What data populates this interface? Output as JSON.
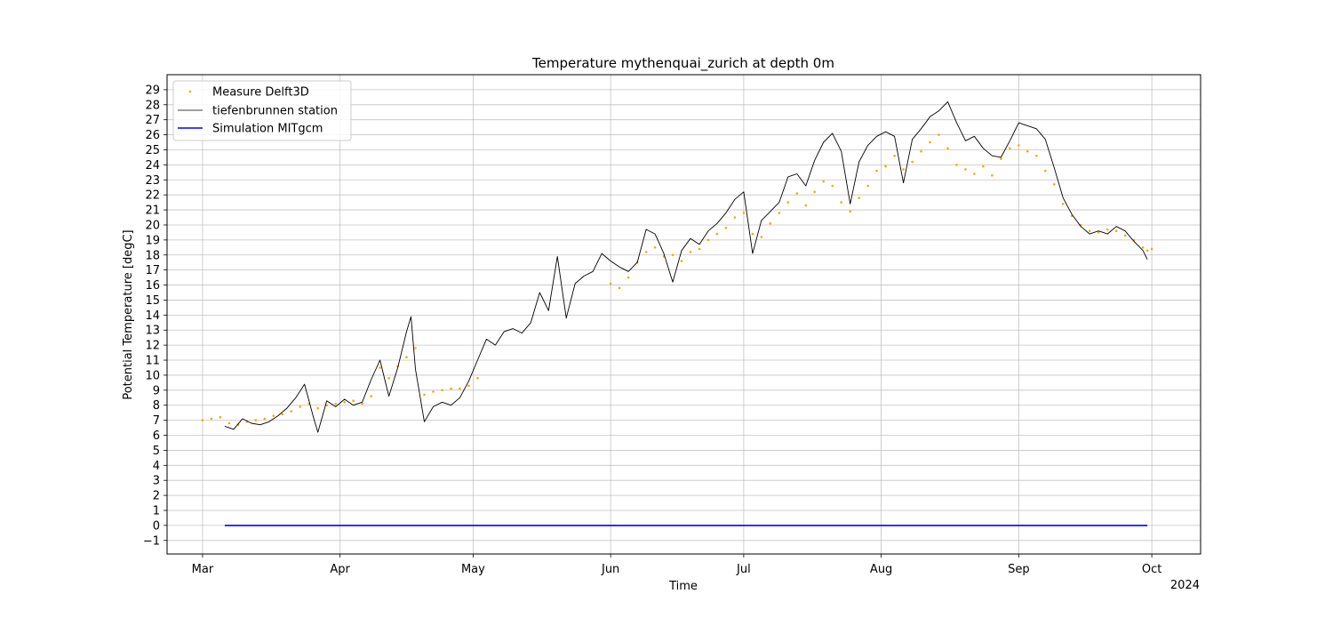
{
  "chart_data": {
    "type": "line",
    "title": "Temperature mythenquai_zurich at depth 0m",
    "xlabel": "Time",
    "ylabel": "Potential Temperature [degC]",
    "year_label": "2024",
    "x_axis": {
      "range": [
        "2024-02-22",
        "2024-10-12"
      ],
      "ticks": [
        {
          "date": "2024-03-01",
          "label": "Mar"
        },
        {
          "date": "2024-04-01",
          "label": "Apr"
        },
        {
          "date": "2024-05-01",
          "label": "May"
        },
        {
          "date": "2024-06-01",
          "label": "Jun"
        },
        {
          "date": "2024-07-01",
          "label": "Jul"
        },
        {
          "date": "2024-08-01",
          "label": "Aug"
        },
        {
          "date": "2024-09-01",
          "label": "Sep"
        },
        {
          "date": "2024-10-01",
          "label": "Oct"
        }
      ]
    },
    "y_axis": {
      "ylim": [
        -1.9,
        30.0
      ],
      "ticks": [
        -1,
        0,
        1,
        2,
        3,
        4,
        5,
        6,
        7,
        8,
        9,
        10,
        11,
        12,
        13,
        14,
        15,
        16,
        17,
        18,
        19,
        20,
        21,
        22,
        23,
        24,
        25,
        26,
        27,
        28,
        29
      ]
    },
    "grid": true,
    "legend": {
      "placement": "upper-left",
      "entries": [
        {
          "label": "Measure Delft3D",
          "style": "dots",
          "color": "#ffa500"
        },
        {
          "label": "tiefenbrunnen station",
          "style": "thin-line",
          "color": "#000000"
        },
        {
          "label": "Simulation MITgcm",
          "style": "line",
          "color": "#0000ff"
        }
      ]
    },
    "series": [
      {
        "name": "Measure Delft3D",
        "style": "dots",
        "color": "#ffa500",
        "points": [
          [
            "2024-03-01",
            7.0
          ],
          [
            "2024-03-03",
            7.1
          ],
          [
            "2024-03-05",
            7.2
          ],
          [
            "2024-03-07",
            6.8
          ],
          [
            "2024-03-09",
            6.7
          ],
          [
            "2024-03-11",
            6.9
          ],
          [
            "2024-03-13",
            7.0
          ],
          [
            "2024-03-15",
            7.1
          ],
          [
            "2024-03-17",
            7.3
          ],
          [
            "2024-03-19",
            7.4
          ],
          [
            "2024-03-21",
            7.6
          ],
          [
            "2024-03-23",
            7.9
          ],
          [
            "2024-03-25",
            8.1
          ],
          [
            "2024-03-27",
            7.8
          ],
          [
            "2024-03-29",
            8.0
          ],
          [
            "2024-03-31",
            8.1
          ],
          [
            "2024-04-02",
            8.2
          ],
          [
            "2024-04-04",
            8.3
          ],
          [
            "2024-04-06",
            8.1
          ],
          [
            "2024-04-08",
            8.6
          ],
          [
            "2024-04-10",
            10.5
          ],
          [
            "2024-04-12",
            9.8
          ],
          [
            "2024-04-14",
            10.6
          ],
          [
            "2024-04-16",
            11.2
          ],
          [
            "2024-04-18",
            11.8
          ],
          [
            "2024-04-20",
            8.7
          ],
          [
            "2024-04-22",
            8.9
          ],
          [
            "2024-04-24",
            9.0
          ],
          [
            "2024-04-26",
            9.1
          ],
          [
            "2024-04-28",
            9.1
          ],
          [
            "2024-04-30",
            9.3
          ],
          [
            "2024-05-02",
            9.8
          ],
          [
            "2024-06-01",
            16.1
          ],
          [
            "2024-06-03",
            15.8
          ],
          [
            "2024-06-05",
            16.5
          ],
          [
            "2024-06-07",
            17.5
          ],
          [
            "2024-06-09",
            18.2
          ],
          [
            "2024-06-11",
            18.5
          ],
          [
            "2024-06-13",
            17.9
          ],
          [
            "2024-06-15",
            18.0
          ],
          [
            "2024-06-17",
            17.6
          ],
          [
            "2024-06-19",
            18.2
          ],
          [
            "2024-06-21",
            18.4
          ],
          [
            "2024-06-23",
            19.0
          ],
          [
            "2024-06-25",
            19.4
          ],
          [
            "2024-06-27",
            19.8
          ],
          [
            "2024-06-29",
            20.5
          ],
          [
            "2024-07-01",
            20.8
          ],
          [
            "2024-07-03",
            19.4
          ],
          [
            "2024-07-05",
            19.2
          ],
          [
            "2024-07-07",
            20.1
          ],
          [
            "2024-07-09",
            20.8
          ],
          [
            "2024-07-11",
            21.5
          ],
          [
            "2024-07-13",
            22.1
          ],
          [
            "2024-07-15",
            21.3
          ],
          [
            "2024-07-17",
            22.2
          ],
          [
            "2024-07-19",
            22.9
          ],
          [
            "2024-07-21",
            22.6
          ],
          [
            "2024-07-23",
            21.5
          ],
          [
            "2024-07-25",
            20.9
          ],
          [
            "2024-07-27",
            21.8
          ],
          [
            "2024-07-29",
            22.6
          ],
          [
            "2024-07-31",
            23.6
          ],
          [
            "2024-08-02",
            23.9
          ],
          [
            "2024-08-04",
            24.6
          ],
          [
            "2024-08-06",
            23.7
          ],
          [
            "2024-08-08",
            24.2
          ],
          [
            "2024-08-10",
            24.9
          ],
          [
            "2024-08-12",
            25.5
          ],
          [
            "2024-08-14",
            26.0
          ],
          [
            "2024-08-16",
            25.1
          ],
          [
            "2024-08-18",
            24.0
          ],
          [
            "2024-08-20",
            23.7
          ],
          [
            "2024-08-22",
            23.4
          ],
          [
            "2024-08-24",
            23.9
          ],
          [
            "2024-08-26",
            23.3
          ],
          [
            "2024-08-28",
            24.4
          ],
          [
            "2024-08-30",
            25.1
          ],
          [
            "2024-09-01",
            25.3
          ],
          [
            "2024-09-03",
            24.9
          ],
          [
            "2024-09-05",
            24.6
          ],
          [
            "2024-09-07",
            23.6
          ],
          [
            "2024-09-09",
            22.7
          ],
          [
            "2024-09-11",
            21.4
          ],
          [
            "2024-09-13",
            20.6
          ],
          [
            "2024-09-15",
            20.0
          ],
          [
            "2024-09-17",
            19.6
          ],
          [
            "2024-09-19",
            19.5
          ],
          [
            "2024-09-21",
            19.7
          ],
          [
            "2024-09-23",
            19.6
          ],
          [
            "2024-09-25",
            19.3
          ],
          [
            "2024-09-27",
            19.0
          ],
          [
            "2024-09-29",
            18.5
          ],
          [
            "2024-09-30",
            18.3
          ],
          [
            "2024-10-01",
            18.4
          ]
        ]
      },
      {
        "name": "tiefenbrunnen station",
        "style": "thin-line",
        "color": "#000000",
        "points": [
          [
            "2024-03-06",
            6.6
          ],
          [
            "2024-03-08",
            6.4
          ],
          [
            "2024-03-10",
            7.1
          ],
          [
            "2024-03-12",
            6.8
          ],
          [
            "2024-03-14",
            6.7
          ],
          [
            "2024-03-16",
            6.9
          ],
          [
            "2024-03-18",
            7.3
          ],
          [
            "2024-03-20",
            7.8
          ],
          [
            "2024-03-22",
            8.5
          ],
          [
            "2024-03-24",
            9.4
          ],
          [
            "2024-03-26",
            7.2
          ],
          [
            "2024-03-27",
            6.2
          ],
          [
            "2024-03-29",
            8.3
          ],
          [
            "2024-03-31",
            7.9
          ],
          [
            "2024-04-02",
            8.4
          ],
          [
            "2024-04-04",
            8.0
          ],
          [
            "2024-04-06",
            8.2
          ],
          [
            "2024-04-08",
            9.7
          ],
          [
            "2024-04-10",
            11.0
          ],
          [
            "2024-04-12",
            8.6
          ],
          [
            "2024-04-14",
            10.5
          ],
          [
            "2024-04-16",
            12.9
          ],
          [
            "2024-04-17",
            13.9
          ],
          [
            "2024-04-18",
            10.4
          ],
          [
            "2024-04-20",
            6.9
          ],
          [
            "2024-04-22",
            7.9
          ],
          [
            "2024-04-24",
            8.2
          ],
          [
            "2024-04-26",
            8.0
          ],
          [
            "2024-04-28",
            8.5
          ],
          [
            "2024-04-30",
            9.6
          ],
          [
            "2024-05-02",
            11.0
          ],
          [
            "2024-05-04",
            12.4
          ],
          [
            "2024-05-06",
            12.0
          ],
          [
            "2024-05-08",
            12.9
          ],
          [
            "2024-05-10",
            13.1
          ],
          [
            "2024-05-12",
            12.8
          ],
          [
            "2024-05-14",
            13.5
          ],
          [
            "2024-05-16",
            15.5
          ],
          [
            "2024-05-18",
            14.3
          ],
          [
            "2024-05-20",
            17.9
          ],
          [
            "2024-05-22",
            13.8
          ],
          [
            "2024-05-24",
            16.1
          ],
          [
            "2024-05-26",
            16.6
          ],
          [
            "2024-05-28",
            16.9
          ],
          [
            "2024-05-30",
            18.1
          ],
          [
            "2024-06-01",
            17.6
          ],
          [
            "2024-06-03",
            17.2
          ],
          [
            "2024-06-05",
            16.9
          ],
          [
            "2024-06-07",
            17.5
          ],
          [
            "2024-06-09",
            19.7
          ],
          [
            "2024-06-11",
            19.4
          ],
          [
            "2024-06-13",
            18.1
          ],
          [
            "2024-06-15",
            16.2
          ],
          [
            "2024-06-17",
            18.3
          ],
          [
            "2024-06-19",
            19.1
          ],
          [
            "2024-06-21",
            18.7
          ],
          [
            "2024-06-23",
            19.6
          ],
          [
            "2024-06-25",
            20.1
          ],
          [
            "2024-06-27",
            20.8
          ],
          [
            "2024-06-29",
            21.7
          ],
          [
            "2024-07-01",
            22.2
          ],
          [
            "2024-07-03",
            18.1
          ],
          [
            "2024-07-05",
            20.3
          ],
          [
            "2024-07-07",
            20.9
          ],
          [
            "2024-07-09",
            21.5
          ],
          [
            "2024-07-11",
            23.2
          ],
          [
            "2024-07-13",
            23.4
          ],
          [
            "2024-07-15",
            22.6
          ],
          [
            "2024-07-17",
            24.3
          ],
          [
            "2024-07-19",
            25.5
          ],
          [
            "2024-07-21",
            26.1
          ],
          [
            "2024-07-23",
            24.9
          ],
          [
            "2024-07-25",
            21.4
          ],
          [
            "2024-07-27",
            24.2
          ],
          [
            "2024-07-29",
            25.3
          ],
          [
            "2024-07-31",
            25.9
          ],
          [
            "2024-08-02",
            26.2
          ],
          [
            "2024-08-04",
            25.9
          ],
          [
            "2024-08-06",
            22.8
          ],
          [
            "2024-08-08",
            25.7
          ],
          [
            "2024-08-10",
            26.4
          ],
          [
            "2024-08-12",
            27.2
          ],
          [
            "2024-08-14",
            27.6
          ],
          [
            "2024-08-16",
            28.2
          ],
          [
            "2024-08-18",
            26.8
          ],
          [
            "2024-08-20",
            25.6
          ],
          [
            "2024-08-22",
            25.9
          ],
          [
            "2024-08-24",
            25.1
          ],
          [
            "2024-08-26",
            24.6
          ],
          [
            "2024-08-28",
            24.5
          ],
          [
            "2024-08-30",
            25.6
          ],
          [
            "2024-09-01",
            26.8
          ],
          [
            "2024-09-03",
            26.6
          ],
          [
            "2024-09-05",
            26.4
          ],
          [
            "2024-09-07",
            25.7
          ],
          [
            "2024-09-09",
            23.8
          ],
          [
            "2024-09-11",
            21.8
          ],
          [
            "2024-09-13",
            20.7
          ],
          [
            "2024-09-15",
            19.9
          ],
          [
            "2024-09-17",
            19.4
          ],
          [
            "2024-09-19",
            19.6
          ],
          [
            "2024-09-21",
            19.4
          ],
          [
            "2024-09-23",
            19.9
          ],
          [
            "2024-09-25",
            19.6
          ],
          [
            "2024-09-27",
            18.9
          ],
          [
            "2024-09-29",
            18.3
          ],
          [
            "2024-09-30",
            17.7
          ]
        ]
      },
      {
        "name": "Simulation MITgcm",
        "style": "line",
        "color": "#0000ff",
        "points": [
          [
            "2024-03-06",
            0.0
          ],
          [
            "2024-09-30",
            0.0
          ]
        ]
      }
    ]
  }
}
